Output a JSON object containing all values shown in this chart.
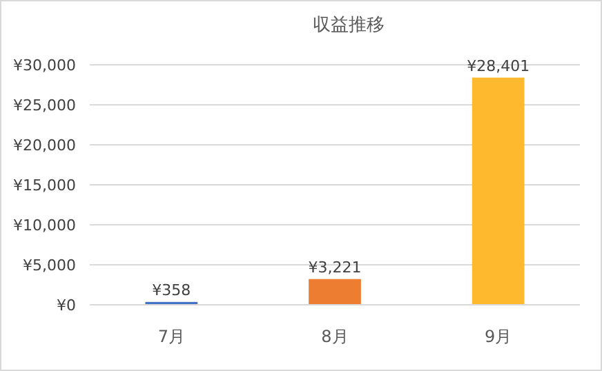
{
  "chart_data": {
    "type": "bar",
    "title": "収益推移",
    "categories": [
      "7月",
      "8月",
      "9月"
    ],
    "values": [
      358,
      3221,
      28401
    ],
    "colors": [
      "#4472c4",
      "#ed7d31",
      "#ffb92e"
    ],
    "value_labels": [
      "¥358",
      "¥3,221",
      "¥28,401"
    ],
    "ylim": [
      0,
      30000
    ],
    "yticks": [
      {
        "value": 0,
        "label": "¥0"
      },
      {
        "value": 5000,
        "label": "¥5,000"
      },
      {
        "value": 10000,
        "label": "¥10,000"
      },
      {
        "value": 15000,
        "label": "¥15,000"
      },
      {
        "value": 20000,
        "label": "¥20,000"
      },
      {
        "value": 25000,
        "label": "¥25,000"
      },
      {
        "value": 30000,
        "label": "¥30,000"
      }
    ],
    "grid": "y"
  }
}
